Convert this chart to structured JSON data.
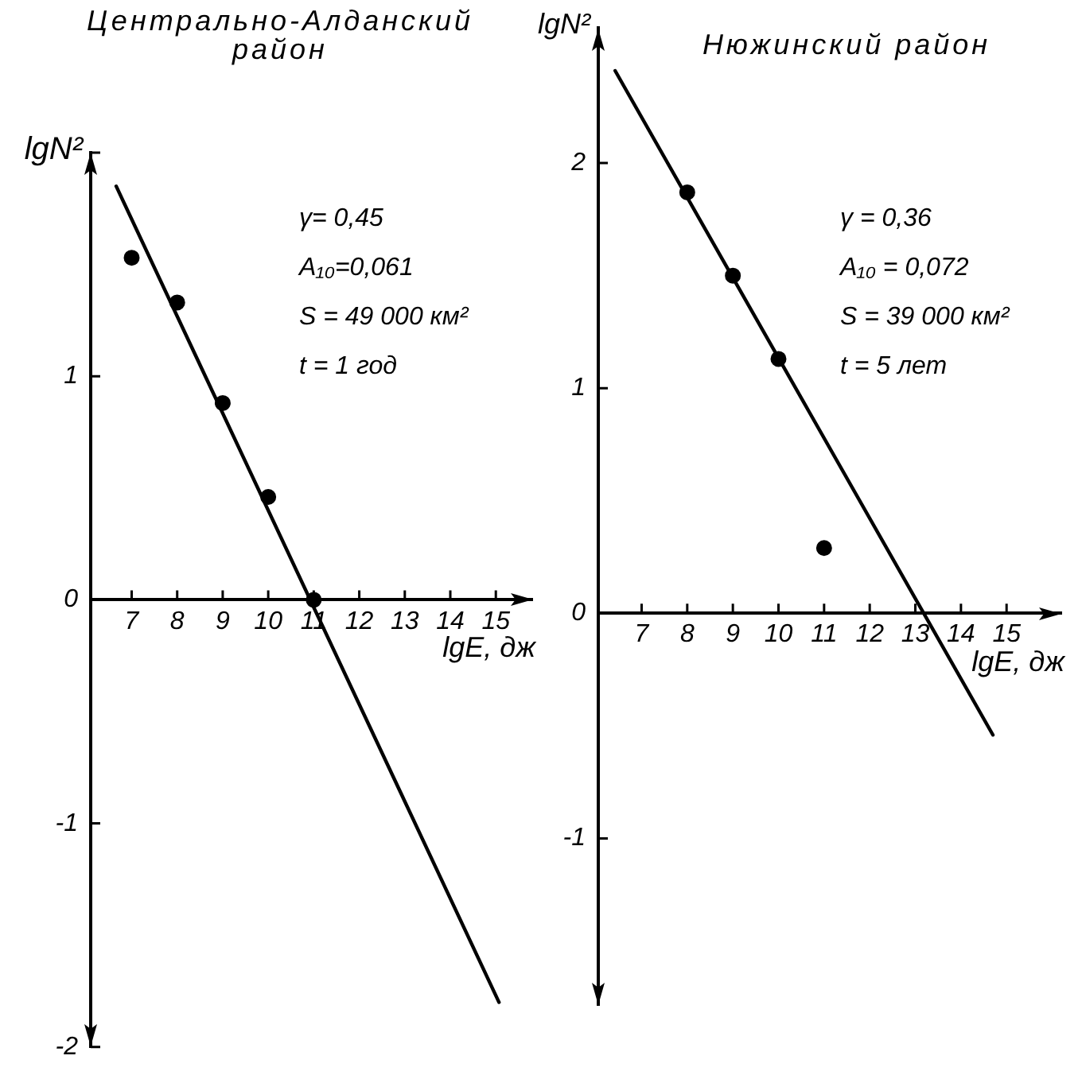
{
  "chart_data": [
    {
      "type": "scatter",
      "title": "Центрально-Алданский район",
      "xlabel": "lgE, дж",
      "ylabel": "lgN²",
      "annotations": [
        "γ= 0,45",
        "A₁₀=0,061",
        "S = 49 000 км²",
        "t = 1 год"
      ],
      "xlim": [
        6.1,
        15.8
      ],
      "xticks": [
        7,
        8,
        9,
        10,
        11,
        12,
        13,
        14,
        15
      ],
      "ylim": [
        -2,
        2
      ],
      "yticks": [
        {
          "value": 2,
          "label": null
        },
        1,
        0,
        -1,
        -2
      ],
      "marker": "circle",
      "series": [
        {
          "type": "scatter",
          "color": "#000000",
          "x": [
            7,
            8,
            9,
            10,
            11
          ],
          "values": [
            1.53,
            1.33,
            0.88,
            0.46,
            0
          ]
        },
        {
          "type": "line",
          "color": "#000000",
          "marker": "none",
          "x": [
            6.66,
            15.07
          ],
          "values": [
            1.85,
            -1.8
          ]
        }
      ]
    },
    {
      "type": "scatter",
      "title": "Нюжинский район",
      "xlabel": "lgE, дж",
      "ylabel": "lgN²",
      "annotations": [
        "γ = 0,36",
        "A₁₀ = 0,072",
        "S = 39 000 км²",
        "t = 5 лет"
      ],
      "xlim": [
        6.05,
        16.2
      ],
      "xticks": [
        7,
        8,
        9,
        10,
        11,
        12,
        13,
        14,
        15
      ],
      "ylim": [
        -1.74,
        2.6
      ],
      "yticks": [
        2,
        1,
        0,
        -1
      ],
      "marker": "circle",
      "series": [
        {
          "type": "scatter",
          "color": "#000000",
          "x": [
            8,
            9,
            10,
            11
          ],
          "values": [
            1.87,
            1.5,
            1.13,
            0.29
          ]
        },
        {
          "type": "line",
          "color": "#000000",
          "marker": "none",
          "x": [
            6.42,
            14.7
          ],
          "values": [
            2.41,
            -0.54
          ]
        }
      ]
    }
  ]
}
